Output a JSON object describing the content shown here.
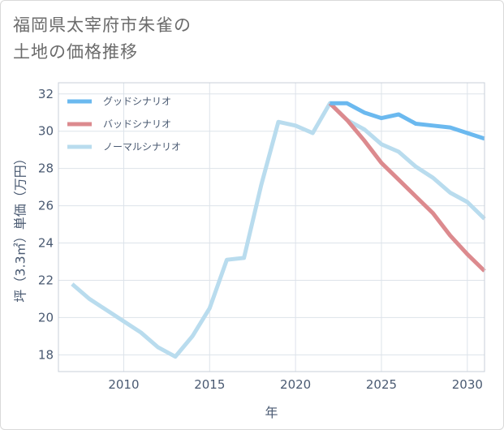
{
  "title_line1": "福岡県太宰府市朱雀の",
  "title_line2": "土地の価格推移",
  "chart_data": {
    "type": "line",
    "title": "福岡県太宰府市朱雀の土地の価格推移",
    "xlabel": "年",
    "ylabel": "坪（3.3㎡）単価（万円）",
    "xlim": [
      2006.2,
      2031
    ],
    "ylim": [
      17.1,
      32.6
    ],
    "xticks": [
      2010,
      2015,
      2020,
      2025,
      2030
    ],
    "yticks": [
      18,
      20,
      22,
      24,
      26,
      28,
      30,
      32
    ],
    "grid": true,
    "legend_position": "top-left",
    "series": [
      {
        "name": "グッドシナリオ",
        "color": "#6bb9ef",
        "x": [
          2022,
          2023,
          2024,
          2025,
          2026,
          2027,
          2028,
          2029,
          2030,
          2031
        ],
        "values": [
          31.5,
          31.5,
          31.0,
          30.7,
          30.9,
          30.4,
          30.3,
          30.2,
          29.9,
          29.6
        ]
      },
      {
        "name": "バッドシナリオ",
        "color": "#dc8a8e",
        "x": [
          2022,
          2023,
          2024,
          2025,
          2026,
          2027,
          2028,
          2029,
          2030,
          2031
        ],
        "values": [
          31.5,
          30.6,
          29.5,
          28.3,
          27.4,
          26.5,
          25.6,
          24.4,
          23.4,
          22.5
        ]
      },
      {
        "name": "ノーマルシナリオ",
        "color": "#b9dcee",
        "x": [
          2007,
          2008,
          2009,
          2010,
          2011,
          2012,
          2013,
          2014,
          2015,
          2016,
          2017,
          2018,
          2019,
          2020,
          2021,
          2022,
          2023,
          2024,
          2025,
          2026,
          2027,
          2028,
          2029,
          2030,
          2031
        ],
        "values": [
          21.8,
          21.0,
          20.4,
          19.8,
          19.2,
          18.4,
          17.9,
          19.0,
          20.5,
          23.1,
          23.2,
          27.1,
          30.5,
          30.3,
          29.9,
          31.5,
          30.6,
          30.1,
          29.3,
          28.9,
          28.1,
          27.5,
          26.7,
          26.2,
          25.3
        ]
      }
    ]
  }
}
